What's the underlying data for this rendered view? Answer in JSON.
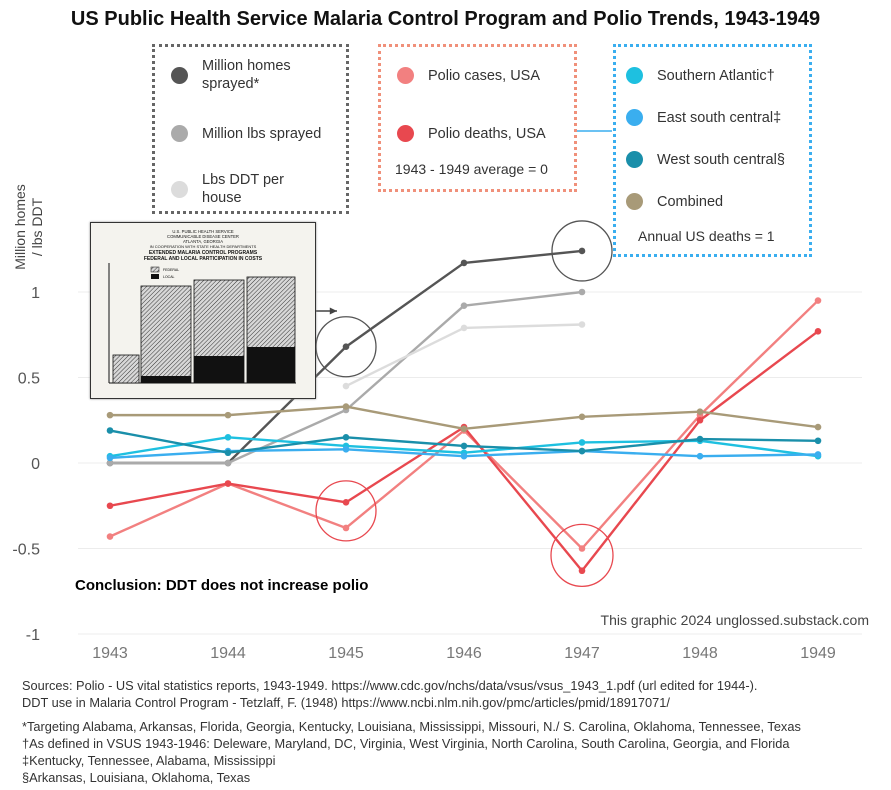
{
  "title": "US Public Health Service Malaria Control Program and Polio Trends, 1943-1949",
  "chart_data": {
    "type": "line",
    "title": "US Public Health Service Malaria Control Program and Polio Trends, 1943-1949",
    "ylabel": "Million homes / lbs DDT",
    "xlabel": "",
    "x": [
      1943,
      1944,
      1945,
      1946,
      1947,
      1948,
      1949
    ],
    "x_ticks": [
      "1943",
      "1944",
      "1945",
      "1946",
      "1947",
      "1948",
      "1949"
    ],
    "ylim": [
      -1,
      1.25
    ],
    "y_ticks": [
      "1",
      "0.5",
      "0",
      "-0.5",
      "-1"
    ],
    "y_tick_values": [
      1,
      0.5,
      0,
      -0.5,
      -1
    ],
    "grid": true,
    "series": [
      {
        "name": "Million homes sprayed*",
        "color": "#555555",
        "values": [
          0,
          0,
          0.68,
          1.17,
          1.24,
          null,
          null
        ]
      },
      {
        "name": "Million lbs sprayed",
        "color": "#aaaaaa",
        "values": [
          0,
          0,
          0.31,
          0.92,
          1.0,
          null,
          null
        ]
      },
      {
        "name": "Lbs DDT per house",
        "color": "#dcdcdc",
        "values": [
          null,
          null,
          0.45,
          0.79,
          0.81,
          null,
          null
        ]
      },
      {
        "name": "Polio cases, USA",
        "color": "#f28080",
        "values": [
          -0.43,
          -0.12,
          -0.38,
          0.19,
          -0.5,
          0.28,
          0.95
        ]
      },
      {
        "name": "Polio deaths, USA",
        "color": "#e8484f",
        "values": [
          -0.25,
          -0.12,
          -0.23,
          0.21,
          -0.63,
          0.25,
          0.77
        ]
      },
      {
        "name": "Southern Atlantic†",
        "color": "#1ec0e0",
        "values": [
          0.04,
          0.15,
          0.1,
          0.06,
          0.12,
          0.13,
          0.04
        ]
      },
      {
        "name": "East south central‡",
        "color": "#3aaeef",
        "values": [
          0.03,
          0.07,
          0.08,
          0.04,
          0.07,
          0.04,
          0.05
        ]
      },
      {
        "name": "West south central§",
        "color": "#1a8faa",
        "values": [
          0.19,
          0.06,
          0.15,
          0.1,
          0.07,
          0.14,
          0.13
        ]
      },
      {
        "name": "Combined",
        "color": "#a89a78",
        "values": [
          0.28,
          0.28,
          0.33,
          0.2,
          0.27,
          0.3,
          0.21
        ]
      }
    ],
    "annotations": [
      "Conclusion: DDT does not increase polio",
      "This graphic 2024 unglossed.substack.com"
    ]
  },
  "legend_groups": [
    {
      "items": [
        {
          "label": "Million homes sprayed*",
          "color": "#555555"
        },
        {
          "label": "Million lbs sprayed",
          "color": "#aaaaaa"
        },
        {
          "label": "Lbs DDT per house",
          "color": "#dcdcdc"
        }
      ],
      "border_color": "#666666"
    },
    {
      "items": [
        {
          "label": "Polio cases, USA",
          "color": "#f28080"
        },
        {
          "label": "Polio deaths, USA",
          "color": "#e8484f"
        }
      ],
      "note": "1943 - 1949 average = 0",
      "border_color": "#f0907a"
    },
    {
      "items": [
        {
          "label": "Southern Atlantic†",
          "color": "#1ec0e0"
        },
        {
          "label": "East south central‡",
          "color": "#3aaeef"
        },
        {
          "label": "West south central§",
          "color": "#1a8faa"
        },
        {
          "label": "Combined",
          "color": "#a89a78"
        }
      ],
      "note": "Annual US deaths = 1",
      "border_color": "#3aaeef"
    }
  ],
  "ylabel_line1": "Million homes",
  "ylabel_line2": "/ lbs DDT",
  "conclusion": "Conclusion: DDT does not increase polio",
  "credit": "This graphic 2024 unglossed.substack.com",
  "inset": {
    "line1": "U.S. PUBLIC HEALTH SERVICE",
    "line2": "COMMUNICABLE DISEASE CENTER",
    "line3": "ATLANTA, GEORGIA",
    "line4": "IN COOPERATION WITH STATE HEALTH DEPARTMENTS",
    "line5": "EXTENDED MALARIA CONTROL PROGRAMS",
    "line6": "FEDERAL AND LOCAL PARTICIPATION IN COSTS",
    "legend_federal": "FEDERAL",
    "legend_local": "LOCAL"
  },
  "sources": {
    "line1": "Sources: Polio - US vital statistics reports, 1943-1949. https://www.cdc.gov/nchs/data/vsus/vsus_1943_1.pdf (url edited for 1944-).",
    "line2": "DDT use in Malaria Control Program - Tetzlaff, F. (1948) https://www.ncbi.nlm.nih.gov/pmc/articles/pmid/18917071/"
  },
  "footnotes": {
    "line1": "*Targeting Alabama, Arkansas, Florida, Georgia, Kentucky, Louisiana, Mississippi, Missouri, N./ S. Carolina, Oklahoma, Tennessee, Texas",
    "line2": "†As defined in VSUS 1943-1946: Deleware, Maryland, DC, Virginia, West Virginia, North Carolina, South Carolina, Georgia, and Florida",
    "line3": "‡Kentucky, Tennessee, Alabama, Mississippi",
    "line4": "§Arkansas, Louisiana, Oklahoma, Texas"
  }
}
